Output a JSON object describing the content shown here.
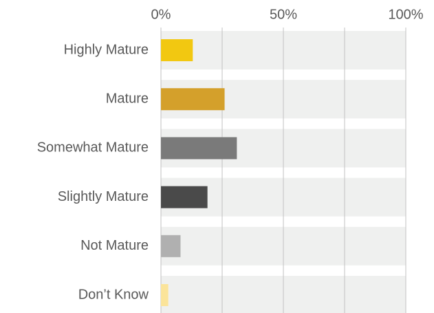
{
  "chart_data": {
    "type": "barh",
    "categories": [
      "Highly Mature",
      "Mature",
      "Somewhat Mature",
      "Slightly Mature",
      "Not Mature",
      "Don’t Know"
    ],
    "values": [
      13,
      26,
      31,
      19,
      8,
      3
    ],
    "colors": [
      "#f2c811",
      "#d4a02b",
      "#7a7a7a",
      "#4a4a4a",
      "#b0b0b0",
      "#fbe49a"
    ],
    "xlim": [
      0,
      100
    ],
    "xticks": [
      {
        "value": 0,
        "label": "0%"
      },
      {
        "value": 50,
        "label": "50%"
      },
      {
        "value": 100,
        "label": "100%"
      }
    ],
    "minor_xticks": [
      25,
      75
    ],
    "grid": true
  }
}
